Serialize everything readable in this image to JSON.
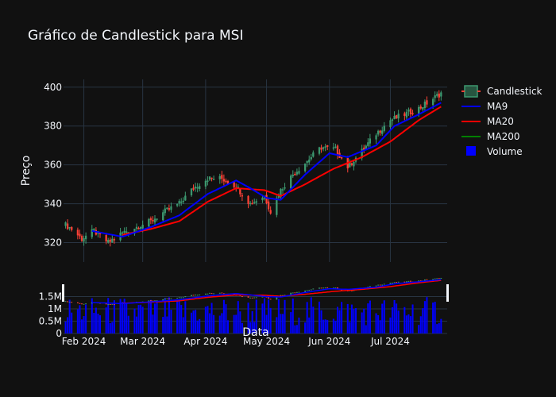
{
  "chart_data": {
    "type": "candlestick",
    "title": "Gráfico de Candlestick para MSI",
    "xlabel": "Data",
    "ylabel": "Preço",
    "x_ticks": [
      "Feb 2024",
      "Mar 2024",
      "Apr 2024",
      "May 2024",
      "Jun 2024",
      "Jul 2024"
    ],
    "price_ylim": [
      310,
      404
    ],
    "price_y_ticks": [
      320,
      340,
      360,
      380,
      400
    ],
    "volume_ylim": [
      0,
      2000000
    ],
    "volume_y_ticks": [
      {
        "value": 0,
        "label": "0"
      },
      {
        "value": 500000,
        "label": "0.5M"
      },
      {
        "value": 1000000,
        "label": "1M"
      },
      {
        "value": 1500000,
        "label": "1.5M"
      }
    ],
    "date_range": [
      "2024-01-23",
      "2024-07-26"
    ],
    "legend": [
      "Candlestick",
      "MA9",
      "MA20",
      "MA200",
      "Volume"
    ],
    "legend_position": "right",
    "colors": {
      "up": "#3d9970",
      "down": "#ff4136",
      "ma9": "#0000ff",
      "ma20": "#ff0000",
      "ma200": "#008000",
      "volume": "#0000ff",
      "background": "#111111",
      "grid": "#283442"
    },
    "close_anchors": [
      [
        "2024-01-23",
        329
      ],
      [
        "2024-01-26",
        327
      ],
      [
        "2024-01-31",
        322
      ],
      [
        "2024-02-06",
        326
      ],
      [
        "2024-02-13",
        320
      ],
      [
        "2024-02-20",
        325
      ],
      [
        "2024-02-27",
        328
      ],
      [
        "2024-03-05",
        331
      ],
      [
        "2024-03-12",
        336
      ],
      [
        "2024-03-19",
        340
      ],
      [
        "2024-03-26",
        348
      ],
      [
        "2024-04-02",
        353
      ],
      [
        "2024-04-09",
        353
      ],
      [
        "2024-04-16",
        349
      ],
      [
        "2024-04-23",
        340
      ],
      [
        "2024-04-30",
        344
      ],
      [
        "2024-05-03",
        336
      ],
      [
        "2024-05-08",
        347
      ],
      [
        "2024-05-14",
        355
      ],
      [
        "2024-05-21",
        362
      ],
      [
        "2024-05-28",
        369
      ],
      [
        "2024-06-04",
        368
      ],
      [
        "2024-06-10",
        359
      ],
      [
        "2024-06-17",
        367
      ],
      [
        "2024-06-24",
        376
      ],
      [
        "2024-07-01",
        383
      ],
      [
        "2024-07-08",
        386
      ],
      [
        "2024-07-15",
        389
      ],
      [
        "2024-07-22",
        394
      ],
      [
        "2024-07-26",
        397
      ]
    ],
    "ma9_anchors": [
      [
        "2024-02-05",
        326
      ],
      [
        "2024-02-20",
        323
      ],
      [
        "2024-03-05",
        328
      ],
      [
        "2024-03-19",
        334
      ],
      [
        "2024-04-02",
        345
      ],
      [
        "2024-04-16",
        352
      ],
      [
        "2024-04-23",
        348
      ],
      [
        "2024-05-01",
        343
      ],
      [
        "2024-05-08",
        342
      ],
      [
        "2024-05-20",
        355
      ],
      [
        "2024-06-01",
        366
      ],
      [
        "2024-06-10",
        364
      ],
      [
        "2024-06-24",
        370
      ],
      [
        "2024-07-03",
        380
      ],
      [
        "2024-07-15",
        386
      ],
      [
        "2024-07-26",
        392
      ]
    ],
    "ma20_anchors": [
      [
        "2024-02-20",
        324
      ],
      [
        "2024-03-05",
        327
      ],
      [
        "2024-03-19",
        331
      ],
      [
        "2024-04-02",
        341
      ],
      [
        "2024-04-16",
        348
      ],
      [
        "2024-04-30",
        347
      ],
      [
        "2024-05-08",
        344
      ],
      [
        "2024-05-20",
        350
      ],
      [
        "2024-06-03",
        358
      ],
      [
        "2024-06-17",
        364
      ],
      [
        "2024-07-01",
        372
      ],
      [
        "2024-07-15",
        383
      ],
      [
        "2024-07-26",
        390
      ]
    ]
  }
}
